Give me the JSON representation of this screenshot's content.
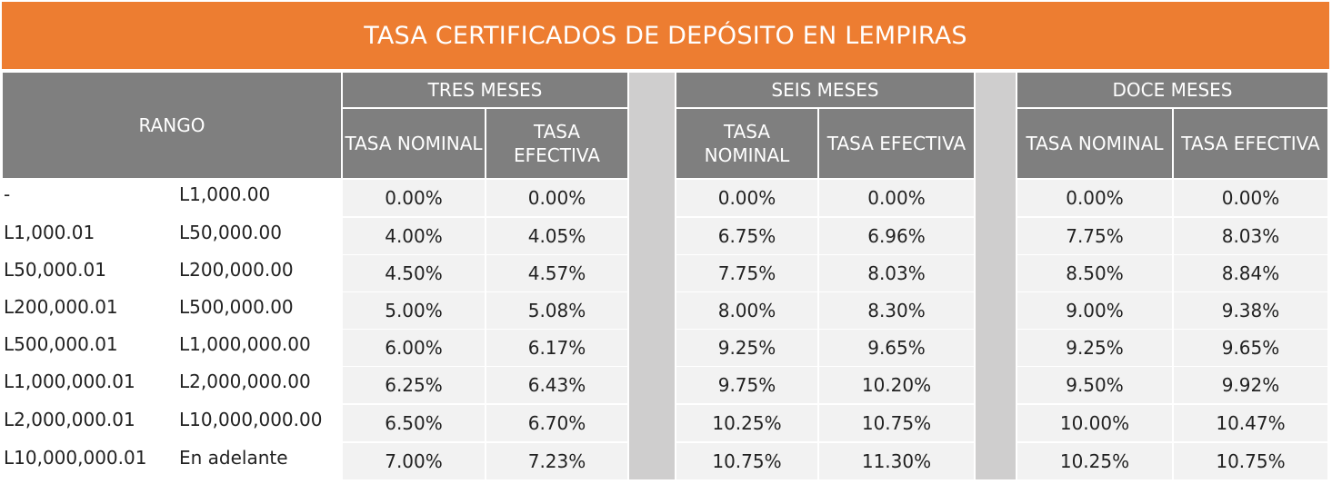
{
  "title": "TASA CERTIFICADOS DE DEPÓSITO EN LEMPIRAS",
  "header": {
    "rango": "RANGO",
    "periods": [
      "TRES MESES",
      "SEIS MESES",
      "DOCE MESES"
    ],
    "sub": [
      [
        "TASA NOMINAL",
        "TASA EFECTIVA"
      ],
      [
        "TASA NOMINAL",
        "TASA EFECTIVA"
      ],
      [
        "TASA NOMINAL",
        "TASA EFECTIVA"
      ]
    ]
  },
  "rows": [
    {
      "from": "-",
      "to": "L1,000.00",
      "rates": [
        "0.00%",
        "0.00%",
        "0.00%",
        "0.00%",
        "0.00%",
        "0.00%"
      ]
    },
    {
      "from": "L1,000.01",
      "to": "L50,000.00",
      "rates": [
        "4.00%",
        "4.05%",
        "6.75%",
        "6.96%",
        "7.75%",
        "8.03%"
      ]
    },
    {
      "from": "L50,000.01",
      "to": "L200,000.00",
      "rates": [
        "4.50%",
        "4.57%",
        "7.75%",
        "8.03%",
        "8.50%",
        "8.84%"
      ]
    },
    {
      "from": "L200,000.01",
      "to": "L500,000.00",
      "rates": [
        "5.00%",
        "5.08%",
        "8.00%",
        "8.30%",
        "9.00%",
        "9.38%"
      ]
    },
    {
      "from": "L500,000.01",
      "to": "L1,000,000.00",
      "rates": [
        "6.00%",
        "6.17%",
        "9.25%",
        "9.65%",
        "9.25%",
        "9.65%"
      ]
    },
    {
      "from": "L1,000,000.01",
      "to": "L2,000,000.00",
      "rates": [
        "6.25%",
        "6.43%",
        "9.75%",
        "10.20%",
        "9.50%",
        "9.92%"
      ]
    },
    {
      "from": "L2,000,000.01",
      "to": "L10,000,000.00",
      "rates": [
        "6.50%",
        "6.70%",
        "10.25%",
        "10.75%",
        "10.00%",
        "10.47%"
      ]
    },
    {
      "from": "L10,000,000.01",
      "to": "En adelante",
      "rates": [
        "7.00%",
        "7.23%",
        "10.75%",
        "11.30%",
        "10.25%",
        "10.75%"
      ]
    }
  ],
  "colors": {
    "title_bg": "#ED7D31",
    "header_bg": "#7F7F7F",
    "separator": "#CFCECE",
    "cell_bg": "#F2F2F2"
  }
}
